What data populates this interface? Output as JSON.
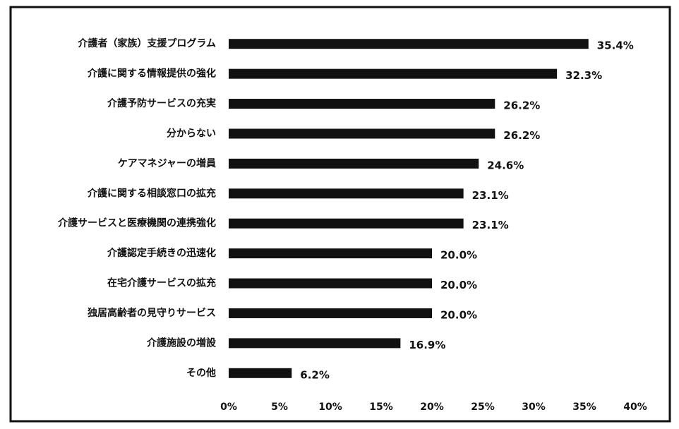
{
  "chart_data": {
    "type": "bar",
    "orientation": "horizontal",
    "categories": [
      "介護者（家族）支援プログラム",
      "介護に関する情報提供の強化",
      "介護予防サービスの充実",
      "分からない",
      "ケアマネジャーの増員",
      "介護に関する相談窓口の拡充",
      "介護サービスと医療機関の連携強化",
      "介護認定手続きの迅速化",
      "在宅介護サービスの拡充",
      "独居高齢者の見守りサービス",
      "介護施設の増設",
      "その他"
    ],
    "values": [
      35.4,
      32.3,
      26.2,
      26.2,
      24.6,
      23.1,
      23.1,
      20.0,
      20.0,
      20.0,
      16.9,
      6.2
    ],
    "value_labels": [
      "35.4%",
      "32.3%",
      "26.2%",
      "26.2%",
      "24.6%",
      "23.1%",
      "23.1%",
      "20.0%",
      "20.0%",
      "20.0%",
      "16.9%",
      "6.2%"
    ],
    "color": "#111111",
    "xlim": [
      0,
      40
    ],
    "xticks": [
      {
        "value": 0,
        "label": "0%"
      },
      {
        "value": 5,
        "label": "5%"
      },
      {
        "value": 10,
        "label": "10%"
      },
      {
        "value": 15,
        "label": "15%"
      },
      {
        "value": 20,
        "label": "20%"
      },
      {
        "value": 25,
        "label": "25%"
      },
      {
        "value": 30,
        "label": "30%"
      },
      {
        "value": 35,
        "label": "35%"
      },
      {
        "value": 40,
        "label": "40%"
      }
    ],
    "grid": false
  }
}
